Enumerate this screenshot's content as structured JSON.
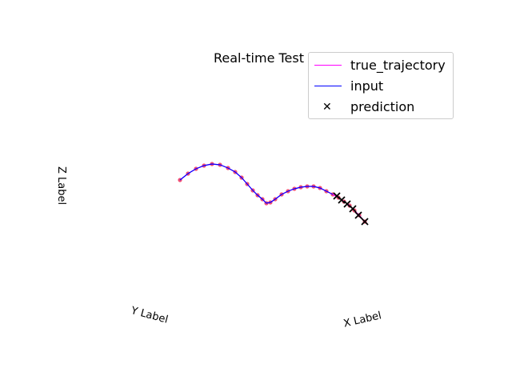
{
  "chart_data": {
    "type": "line",
    "projection": "3d",
    "title": "Real-time Test",
    "xlabel": "X Label",
    "ylabel": "Y Label",
    "zlabel": "Z Label",
    "grid": false,
    "legend_position": "top-right",
    "series": [
      {
        "name": "true_trajectory",
        "kind": "line",
        "color": "#ff00ff",
        "points": [
          [
            225,
            225
          ],
          [
            235,
            217
          ],
          [
            245,
            211
          ],
          [
            255,
            207
          ],
          [
            265,
            205
          ],
          [
            275,
            206
          ],
          [
            285,
            210
          ],
          [
            294,
            215
          ],
          [
            302,
            222
          ],
          [
            309,
            230
          ],
          [
            316,
            238
          ],
          [
            322,
            244
          ],
          [
            328,
            249
          ],
          [
            333,
            254
          ],
          [
            338,
            253
          ],
          [
            344,
            249
          ],
          [
            352,
            243
          ],
          [
            360,
            239
          ],
          [
            368,
            236
          ],
          [
            376,
            234
          ],
          [
            384,
            233
          ],
          [
            392,
            233
          ],
          [
            400,
            235
          ],
          [
            408,
            239
          ],
          [
            416,
            243
          ],
          [
            423,
            247
          ],
          [
            430,
            252
          ],
          [
            437,
            257
          ],
          [
            443,
            263
          ],
          [
            449,
            269
          ],
          [
            456,
            277
          ]
        ]
      },
      {
        "name": "input",
        "kind": "line",
        "color": "#0000ff",
        "points": [
          [
            225,
            225
          ],
          [
            235,
            217
          ],
          [
            245,
            211
          ],
          [
            255,
            207
          ],
          [
            265,
            205
          ],
          [
            275,
            206
          ],
          [
            285,
            210
          ],
          [
            294,
            215
          ],
          [
            302,
            222
          ],
          [
            309,
            230
          ],
          [
            316,
            238
          ],
          [
            322,
            244
          ],
          [
            328,
            249
          ],
          [
            333,
            254
          ],
          [
            338,
            253
          ],
          [
            344,
            249
          ],
          [
            352,
            243
          ],
          [
            360,
            239
          ],
          [
            368,
            236
          ],
          [
            376,
            234
          ],
          [
            384,
            233
          ],
          [
            392,
            233
          ],
          [
            400,
            235
          ],
          [
            408,
            239
          ],
          [
            416,
            243
          ]
        ]
      },
      {
        "name": "prediction",
        "kind": "scatter",
        "marker": "x",
        "color": "#000000",
        "points": [
          [
            421,
            245
          ],
          [
            427,
            250
          ],
          [
            434,
            255
          ],
          [
            441,
            261
          ],
          [
            448,
            269
          ],
          [
            456,
            277
          ]
        ]
      }
    ],
    "point_markers_color": "#f0345c"
  }
}
